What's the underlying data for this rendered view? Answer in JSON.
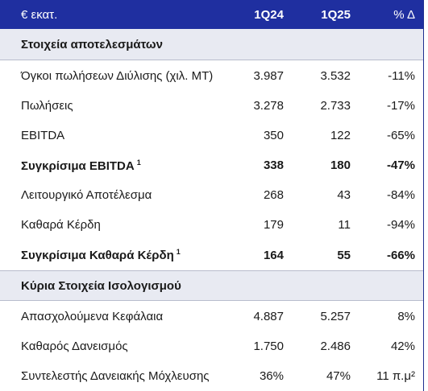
{
  "header": {
    "label": "€ εκατ.",
    "col1": "1Q24",
    "col2": "1Q25",
    "col3": "% Δ"
  },
  "sections": [
    {
      "title": "Στοιχεία αποτελεσμάτων"
    },
    {
      "title": "Κύρια Στοιχεία Ισολογισμού"
    }
  ],
  "rows": [
    {
      "label": "Όγκοι πωλήσεων Διύλισης (χιλ. ΜΤ)",
      "v1": "3.987",
      "v2": "3.532",
      "v3": "-11%"
    },
    {
      "label": "Πωλήσεις",
      "v1": "3.278",
      "v2": "2.733",
      "v3": "-17%"
    },
    {
      "label": "EBITDA",
      "v1": "350",
      "v2": "122",
      "v3": "-65%"
    },
    {
      "label": "Συγκρίσιμα EBITDA",
      "sup": "1",
      "v1": "338",
      "v2": "180",
      "v3": "-47%"
    },
    {
      "label": "Λειτουργικό Αποτέλεσμα",
      "v1": "268",
      "v2": "43",
      "v3": "-84%"
    },
    {
      "label": "Καθαρά Κέρδη",
      "v1": "179",
      "v2": "11",
      "v3": "-94%"
    },
    {
      "label": "Συγκρίσιμα Καθαρά Κέρδη",
      "sup": "1",
      "v1": "164",
      "v2": "55",
      "v3": "-66%"
    },
    {
      "label": "Απασχολούμενα Κεφάλαια",
      "v1": "4.887",
      "v2": "5.257",
      "v3": "8%"
    },
    {
      "label": "Καθαρός Δανεισμός",
      "v1": "1.750",
      "v2": "2.486",
      "v3": "42%"
    },
    {
      "label": "Συντελεστής Δανειακής Μόχλευσης",
      "v1": "36%",
      "v2": "47%",
      "v3": "11 π.μ²"
    }
  ]
}
